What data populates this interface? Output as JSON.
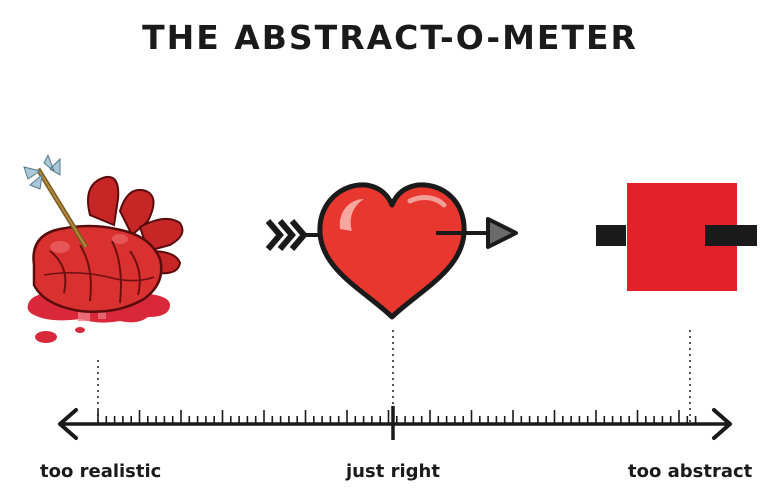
{
  "title": "THE ABSTRACT-O-METER",
  "scale": {
    "labels": {
      "realistic": "too realistic",
      "just_right": "just right",
      "abstract": "too abstract"
    }
  },
  "illustrations": {
    "realistic": "anatomical-heart-with-arrow",
    "just_right": "cartoon-heart-with-arrow",
    "abstract": "red-square-with-bar"
  },
  "colors": {
    "heart_red": "#e8372f",
    "square_red": "#e3212a",
    "blood_red": "#d8283a",
    "ink": "#1a1a1a"
  }
}
